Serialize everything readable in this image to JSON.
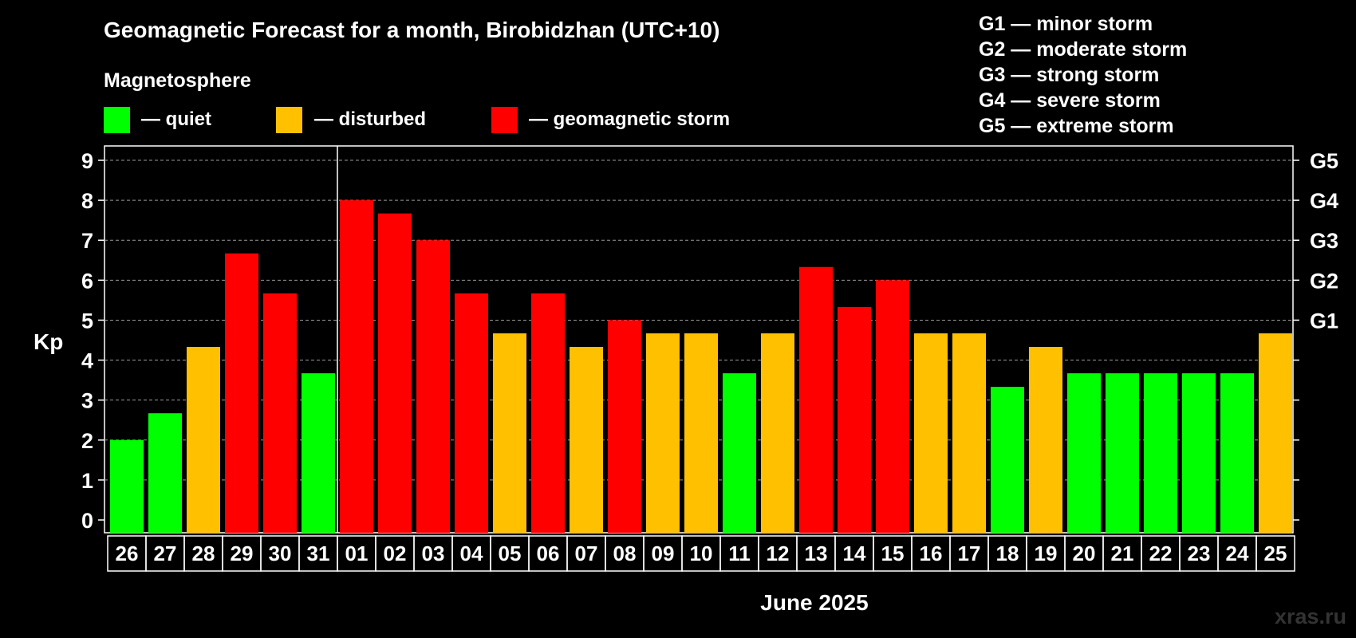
{
  "chart_data": {
    "type": "bar",
    "title": "Geomagnetic Forecast for a month, Birobidzhan (UTC+10)",
    "legend": {
      "heading": "Magnetosphere",
      "items": [
        {
          "key": "quiet",
          "label": "— quiet",
          "color": "#00ff00"
        },
        {
          "key": "disturbed",
          "label": "— disturbed",
          "color": "#ffc000"
        },
        {
          "key": "storm",
          "label": "— geomagnetic storm",
          "color": "#ff0000"
        }
      ]
    },
    "storm_scale": [
      "G1 — minor storm",
      "G2 — moderate storm",
      "G3 — strong storm",
      "G4 — severe storm",
      "G5 — extreme storm"
    ],
    "ylabel": "Kp",
    "xlabel": "June 2025",
    "ylim": [
      0,
      9
    ],
    "yticks": [
      0,
      1,
      2,
      3,
      4,
      5,
      6,
      7,
      8,
      9
    ],
    "right_axis": [
      {
        "kp": 5,
        "label": "G1"
      },
      {
        "kp": 6,
        "label": "G2"
      },
      {
        "kp": 7,
        "label": "G3"
      },
      {
        "kp": 8,
        "label": "G4"
      },
      {
        "kp": 9,
        "label": "G5"
      }
    ],
    "month_divider_after_index": 5,
    "categories": [
      "26",
      "27",
      "28",
      "29",
      "30",
      "31",
      "01",
      "02",
      "03",
      "04",
      "05",
      "06",
      "07",
      "08",
      "09",
      "10",
      "11",
      "12",
      "13",
      "14",
      "15",
      "16",
      "17",
      "18",
      "19",
      "20",
      "21",
      "22",
      "23",
      "24",
      "25"
    ],
    "values": [
      2.0,
      2.67,
      4.33,
      6.67,
      5.67,
      3.67,
      8.0,
      7.67,
      7.0,
      5.67,
      4.67,
      5.67,
      4.33,
      5.0,
      4.67,
      4.67,
      3.67,
      4.67,
      6.33,
      5.33,
      6.0,
      4.67,
      4.67,
      3.33,
      4.33,
      3.67,
      3.67,
      3.67,
      3.67,
      3.67,
      4.67
    ],
    "levels": [
      "quiet",
      "quiet",
      "disturbed",
      "storm",
      "storm",
      "quiet",
      "storm",
      "storm",
      "storm",
      "storm",
      "disturbed",
      "storm",
      "disturbed",
      "storm",
      "disturbed",
      "disturbed",
      "quiet",
      "disturbed",
      "storm",
      "storm",
      "storm",
      "disturbed",
      "disturbed",
      "quiet",
      "disturbed",
      "quiet",
      "quiet",
      "quiet",
      "quiet",
      "quiet",
      "disturbed"
    ],
    "grid": true
  },
  "watermark": "xras.ru"
}
